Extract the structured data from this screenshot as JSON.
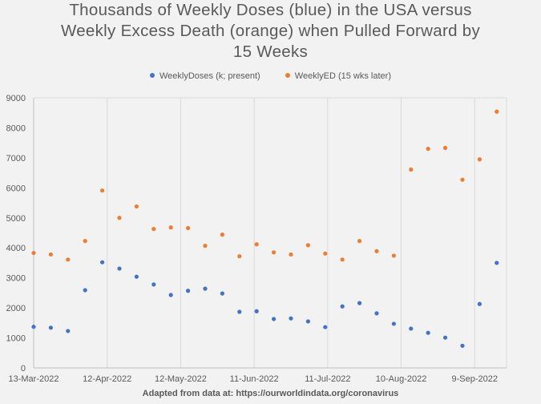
{
  "chart_data": {
    "type": "scatter",
    "title_lines": [
      "Thousands of Weekly Doses (blue) in the USA versus",
      "Weekly Excess Death (orange) when Pulled Forward by",
      "15 Weeks"
    ],
    "source": "Adapted from data at: https://ourworldindata.org/coronavirus",
    "x_tick_labels": [
      "13-Mar-2022",
      "12-Apr-2022",
      "12-May-2022",
      "11-Jun-2022",
      "11-Jul-2022",
      "10-Aug-2022",
      "9-Sep-2022"
    ],
    "y_tick_labels": [
      "0",
      "1000",
      "2000",
      "3000",
      "4000",
      "5000",
      "6000",
      "7000",
      "8000",
      "9000"
    ],
    "ylim": [
      0,
      9000
    ],
    "x_axis_type": "date",
    "grid": "vertical gridlines",
    "legend_position": "top",
    "series": [
      {
        "name": "WeeklyDoses (k; present)",
        "color": "#4472c4",
        "points": [
          [
            "2022-03-13",
            1370
          ],
          [
            "2022-03-20",
            1340
          ],
          [
            "2022-03-27",
            1230
          ],
          [
            "2022-04-03",
            2590
          ],
          [
            "2022-04-10",
            3520
          ],
          [
            "2022-04-17",
            3310
          ],
          [
            "2022-04-24",
            3040
          ],
          [
            "2022-05-01",
            2780
          ],
          [
            "2022-05-08",
            2430
          ],
          [
            "2022-05-15",
            2570
          ],
          [
            "2022-05-22",
            2640
          ],
          [
            "2022-05-29",
            2480
          ],
          [
            "2022-06-05",
            1870
          ],
          [
            "2022-06-12",
            1890
          ],
          [
            "2022-06-19",
            1630
          ],
          [
            "2022-06-26",
            1650
          ],
          [
            "2022-07-03",
            1550
          ],
          [
            "2022-07-10",
            1360
          ],
          [
            "2022-07-17",
            2050
          ],
          [
            "2022-07-24",
            2160
          ],
          [
            "2022-07-31",
            1820
          ],
          [
            "2022-08-07",
            1470
          ],
          [
            "2022-08-14",
            1310
          ],
          [
            "2022-08-21",
            1170
          ],
          [
            "2022-08-28",
            1010
          ],
          [
            "2022-09-04",
            740
          ],
          [
            "2022-09-11",
            2130
          ],
          [
            "2022-09-18",
            3500
          ]
        ]
      },
      {
        "name": "WeeklyED (15 wks later)",
        "color": "#ed7d31",
        "points": [
          [
            "2022-03-13",
            3830
          ],
          [
            "2022-03-20",
            3780
          ],
          [
            "2022-03-27",
            3610
          ],
          [
            "2022-04-03",
            4230
          ],
          [
            "2022-04-10",
            5910
          ],
          [
            "2022-04-17",
            5000
          ],
          [
            "2022-04-24",
            5380
          ],
          [
            "2022-05-01",
            4630
          ],
          [
            "2022-05-08",
            4680
          ],
          [
            "2022-05-15",
            4660
          ],
          [
            "2022-05-22",
            4070
          ],
          [
            "2022-05-29",
            4440
          ],
          [
            "2022-06-05",
            3720
          ],
          [
            "2022-06-12",
            4120
          ],
          [
            "2022-06-19",
            3850
          ],
          [
            "2022-06-26",
            3780
          ],
          [
            "2022-07-03",
            4090
          ],
          [
            "2022-07-10",
            3810
          ],
          [
            "2022-07-17",
            3610
          ],
          [
            "2022-07-24",
            4230
          ],
          [
            "2022-07-31",
            3890
          ],
          [
            "2022-08-07",
            3740
          ],
          [
            "2022-08-14",
            6610
          ],
          [
            "2022-08-21",
            7300
          ],
          [
            "2022-08-28",
            7330
          ],
          [
            "2022-09-04",
            6270
          ],
          [
            "2022-09-11",
            6950
          ],
          [
            "2022-09-18",
            8540
          ]
        ]
      }
    ]
  }
}
